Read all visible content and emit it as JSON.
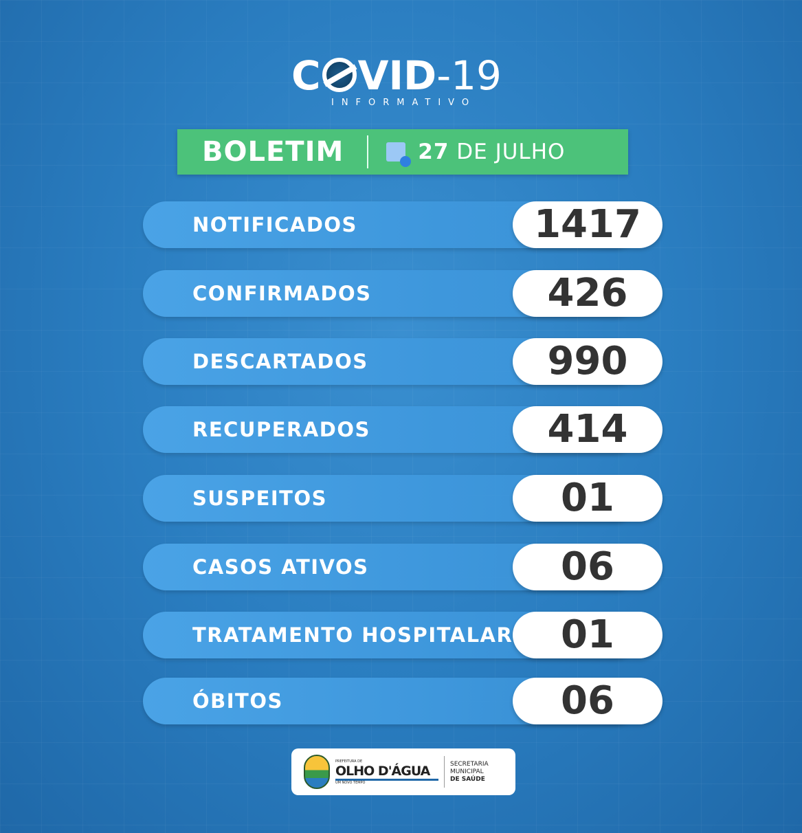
{
  "header": {
    "title_prefix": "C",
    "title_rest": "VID",
    "title_suffix": "-19",
    "subtitle": "INFORMATIVO"
  },
  "bulletin": {
    "label": "BOLETIM",
    "date_day": "27",
    "date_rest": " DE JULHO",
    "icon": "calendar-clock-icon"
  },
  "stats": [
    {
      "label": "NOTIFICADOS",
      "value": "1417"
    },
    {
      "label": "CONFIRMADOS",
      "value": "426"
    },
    {
      "label": "DESCARTADOS",
      "value": "990"
    },
    {
      "label": "RECUPERADOS",
      "value": "414"
    },
    {
      "label": "SUSPEITOS",
      "value": "01"
    },
    {
      "label": "CASOS ATIVOS",
      "value": "06"
    },
    {
      "label": "TRATAMENTO HOSPITALAR",
      "value": "01"
    },
    {
      "label": "ÓBITOS",
      "value": "06"
    }
  ],
  "footer": {
    "small": "PREFEITURA DE",
    "name": "OLHO D'ÁGUA",
    "slogan": "UM NOVO TEMPO",
    "sec1": "SECRETARIA",
    "sec2": "MUNICIPAL",
    "sec3": "DE SAÚDE"
  },
  "colors": {
    "background": "#2a7dc0",
    "banner": "#4cc27a",
    "value_text": "#333333"
  }
}
